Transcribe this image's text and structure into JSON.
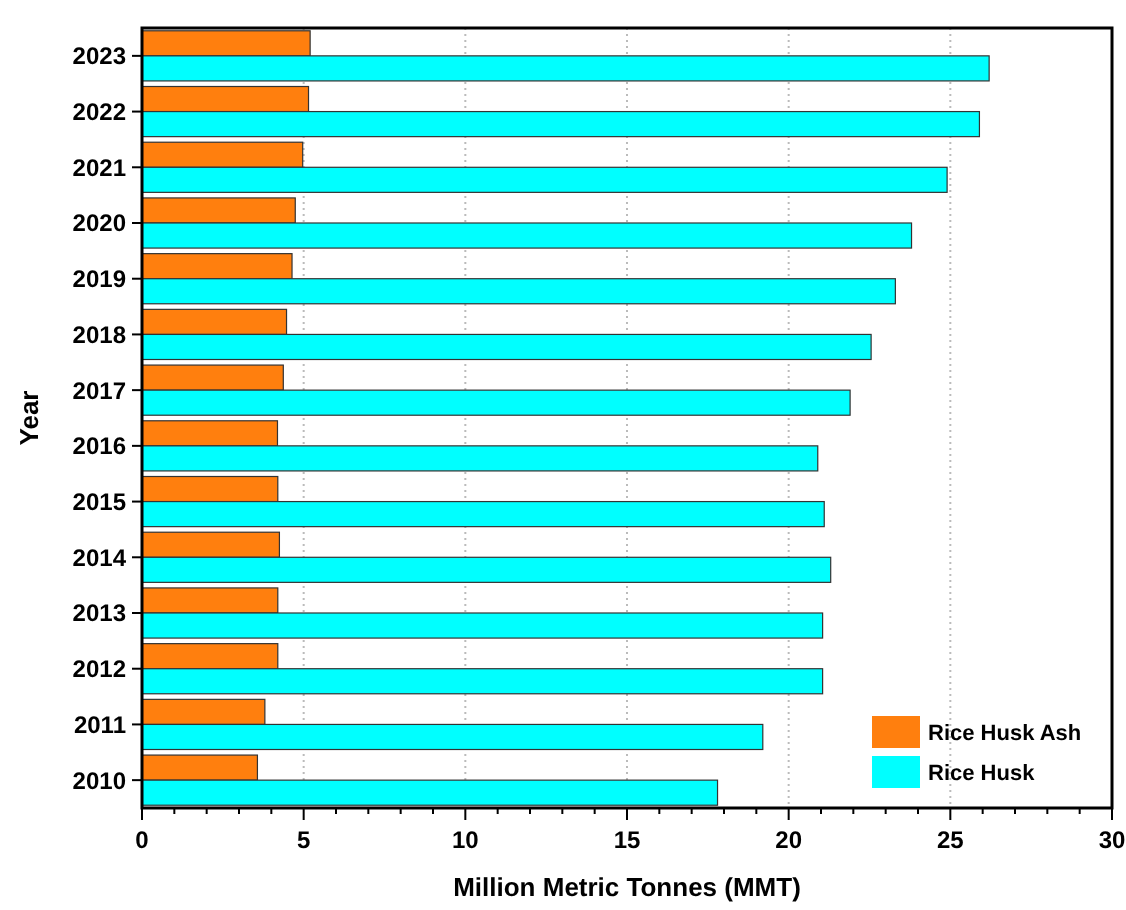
{
  "chart_data": {
    "type": "bar",
    "orientation": "horizontal",
    "xlabel": "Million Metric Tonnes (MMT)",
    "ylabel": "Year",
    "categories": [
      "2023",
      "2022",
      "2021",
      "2020",
      "2019",
      "2018",
      "2017",
      "2016",
      "2015",
      "2014",
      "2013",
      "2012",
      "2011",
      "2010"
    ],
    "series": [
      {
        "name": "Rice Husk Ash",
        "color": "#ff7f0e",
        "values": [
          5.2,
          5.15,
          4.97,
          4.74,
          4.64,
          4.47,
          4.37,
          4.19,
          4.2,
          4.25,
          4.2,
          4.2,
          3.8,
          3.57
        ]
      },
      {
        "name": "Rice Husk",
        "color": "#00ffff",
        "values": [
          26.2,
          25.9,
          24.9,
          23.8,
          23.3,
          22.55,
          21.9,
          20.9,
          21.1,
          21.3,
          21.05,
          21.05,
          19.2,
          17.8
        ]
      }
    ],
    "xlim": [
      0,
      30
    ],
    "xticks": [
      0,
      {
        "value": 1,
        "label": null
      },
      {
        "value": 2,
        "label": null
      },
      {
        "value": 3,
        "label": null
      },
      {
        "value": 4,
        "label": null
      },
      5,
      {
        "value": 6,
        "label": null
      },
      {
        "value": 7,
        "label": null
      },
      {
        "value": 8,
        "label": null
      },
      {
        "value": 9,
        "label": null
      },
      10,
      {
        "value": 11,
        "label": null
      },
      {
        "value": 12,
        "label": null
      },
      {
        "value": 13,
        "label": null
      },
      {
        "value": 14,
        "label": null
      },
      15,
      {
        "value": 16,
        "label": null
      },
      {
        "value": 17,
        "label": null
      },
      {
        "value": 18,
        "label": null
      },
      {
        "value": 19,
        "label": null
      },
      20,
      {
        "value": 21,
        "label": null
      },
      {
        "value": 22,
        "label": null
      },
      {
        "value": 23,
        "label": null
      },
      {
        "value": 24,
        "label": null
      },
      25,
      {
        "value": 26,
        "label": null
      },
      {
        "value": 27,
        "label": null
      },
      {
        "value": 28,
        "label": null
      },
      {
        "value": 29,
        "label": null
      },
      30
    ],
    "grid": "x",
    "legend": "bottom right"
  }
}
